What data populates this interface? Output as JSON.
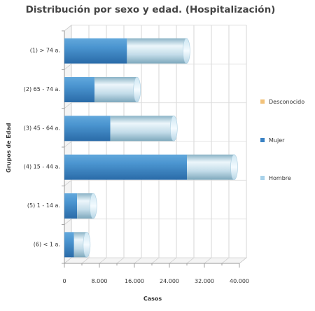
{
  "chart_data": {
    "type": "bar",
    "orientation": "horizontal",
    "stacked": true,
    "title": "Distribución por sexo y edad. (Hospitalización)",
    "xlabel": "Casos",
    "ylabel": "Grupos de Edad",
    "categories": [
      "(1) > 74 a.",
      "(2) 65 - 74 a.",
      "(3) 45 - 64 a.",
      "(4) 15 - 44 a.",
      "(5) 1 - 14 a.",
      "(6) < 1 a."
    ],
    "xlim": [
      0,
      40000
    ],
    "xticks": [
      "0",
      "8.000",
      "16.000",
      "24.000",
      "32.000",
      "40.000"
    ],
    "legend_position": "right",
    "grid": true,
    "series": [
      {
        "name": "Desconocido",
        "color": "#f2c27a",
        "values": [
          0,
          0,
          0,
          0,
          0,
          0
        ]
      },
      {
        "name": "Mujer",
        "color": "#3a82c4",
        "values": [
          14300,
          6900,
          10500,
          28000,
          2900,
          2200
        ]
      },
      {
        "name": "Hombre",
        "color": "#a8d2ea",
        "values": [
          13600,
          9700,
          14500,
          10800,
          3700,
          2900
        ]
      }
    ]
  }
}
